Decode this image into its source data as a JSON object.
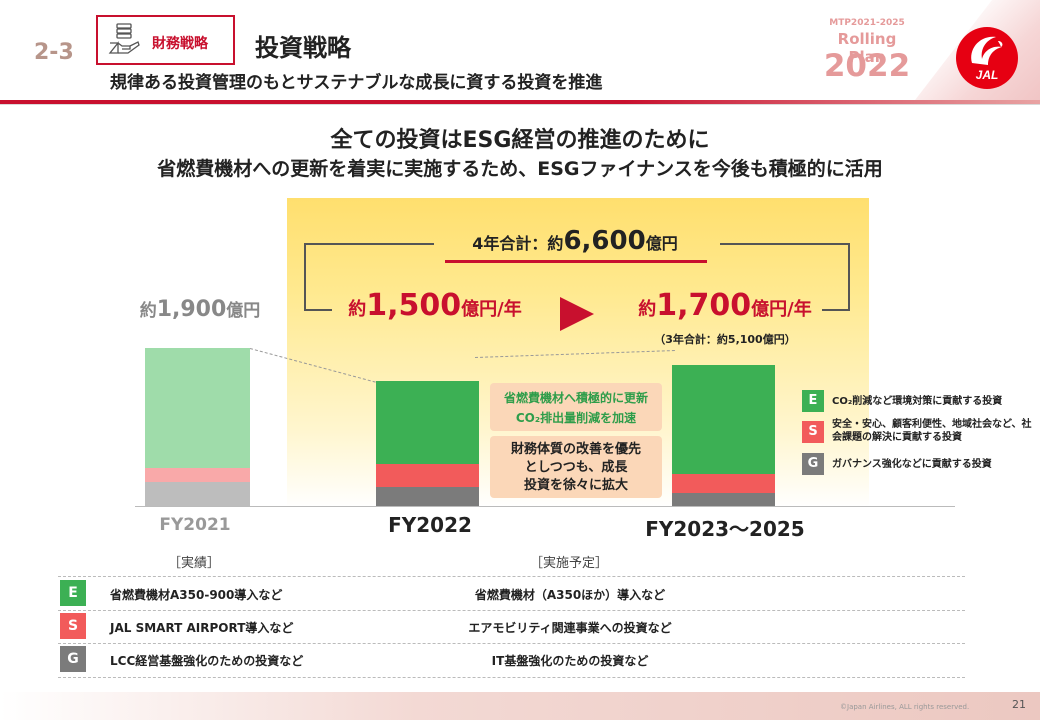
{
  "header": {
    "section_number": "2-3",
    "tag_label": "財務戦略",
    "title": "投資戦略",
    "subtitle": "規律ある投資管理のもとサステナブルな成長に資する投資を推進",
    "mtp_tag": "MTP2021-2025",
    "mtp_plan": "Rolling Plan",
    "mtp_year": "2022",
    "logo_text": "JAL"
  },
  "headline": {
    "line1": "全ての投資はESG経営の推進のために",
    "line2": "省燃費機材への更新を着実に実施するため、ESGファイナンスを今後も積極的に活用"
  },
  "totals": {
    "total_prefix": "4年合計：約",
    "total_number": "6,600",
    "total_unit": "億円",
    "prev_prefix": "約",
    "prev_number": "1,900",
    "prev_unit": "億円",
    "fy22_prefix": "約",
    "fy22_number": "1,500",
    "fy22_unit": "億円/年",
    "fy23_prefix": "約",
    "fy23_number": "1,700",
    "fy23_unit": "億円/年",
    "fy23_note": "（3年合計：約5,100億円）"
  },
  "callouts": {
    "green_line1": "省燃費機材へ積極的に更新",
    "green_line2": "CO₂排出量削減を加速",
    "beige_line1": "財務体質の改善を優先",
    "beige_line2": "としつつも、成長",
    "beige_line3": "投資を徐々に拡大"
  },
  "legend": [
    {
      "letter": "E",
      "text": "CO₂削減など環境対策に貢献する投資",
      "color": "#3cb054"
    },
    {
      "letter": "S",
      "text": "安全・安心、顧客利便性、地域社会など、社会課題の解決に貢献する投資",
      "color": "#f25b5b"
    },
    {
      "letter": "G",
      "text": "ガバナンス強化などに貢献する投資",
      "color": "#7b7b7b"
    }
  ],
  "chart_data": {
    "type": "bar",
    "categories": [
      "FY2021",
      "FY2022",
      "FY2023～2025"
    ],
    "series": [
      {
        "name": "G",
        "values": [
          290,
          230,
          160
        ]
      },
      {
        "name": "S",
        "values": [
          170,
          270,
          220
        ]
      },
      {
        "name": "E",
        "values": [
          1440,
          1000,
          1320
        ]
      }
    ],
    "stacked": true,
    "ylim": [
      0,
      2000
    ]
  },
  "table": {
    "section_left": "［実績］",
    "section_right": "［実施予定］",
    "rows": [
      {
        "letter": "E",
        "left": "省燃費機材A350-900導入など",
        "right": "省燃費機材（A350ほか）導入など",
        "color": "#3cb054"
      },
      {
        "letter": "S",
        "left": "JAL SMART AIRPORT導入など",
        "right": "エアモビリティ関連事業への投資など",
        "color": "#f25b5b"
      },
      {
        "letter": "G",
        "left": "LCC経営基盤強化のための投資など",
        "right": "IT基盤強化のための投資など",
        "color": "#7b7b7b"
      }
    ]
  },
  "footer": {
    "copyright": "©Japan Airlines, ALL rights reserved.",
    "page_number": "21"
  },
  "colors": {
    "brand_red": "#c8102e",
    "e_green": "#3cb054",
    "s_red": "#f25b5b",
    "g_gray": "#7b7b7b"
  }
}
